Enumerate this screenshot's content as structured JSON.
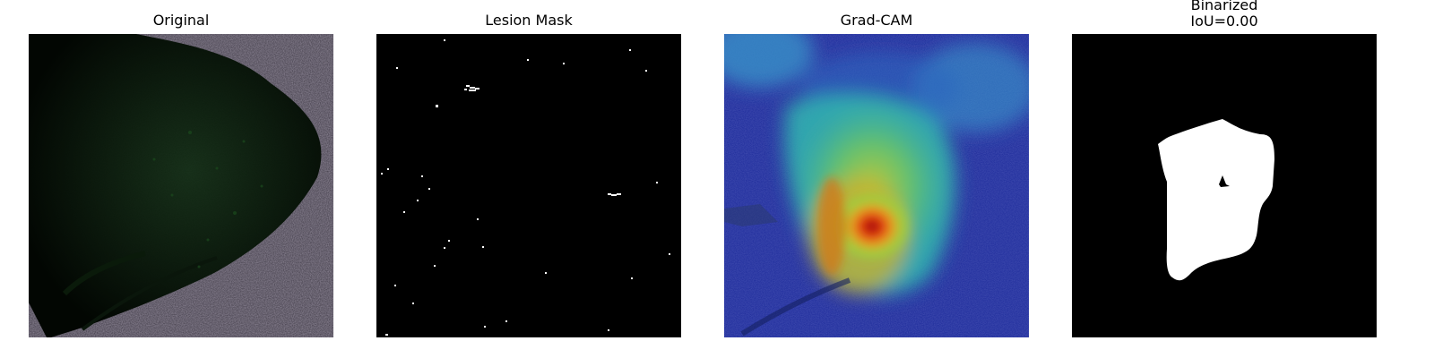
{
  "panels": [
    {
      "title": "Original"
    },
    {
      "title": "Lesion Mask"
    },
    {
      "title": "Grad-CAM"
    },
    {
      "title": "Binarized",
      "subtitle": "IoU=0.00"
    }
  ]
}
